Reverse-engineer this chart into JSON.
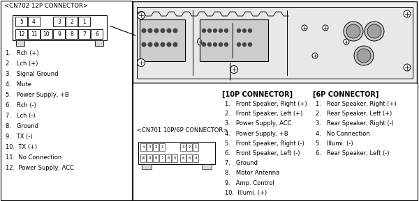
{
  "bg_color": "#ffffff",
  "border_color": "#000000",
  "text_color": "#000000",
  "gray_fill": "#d8d8d8",
  "dark_gray": "#888888",
  "cn702_title": "<CN702 12P CONNECTOR>",
  "cn702_pins_top": [
    "5",
    "4",
    "",
    "3",
    "2",
    "1"
  ],
  "cn702_pins_bot": [
    "12",
    "11",
    "10",
    "9",
    "8",
    "7",
    "6"
  ],
  "cn702_pinout": [
    "1.   Rch (+)",
    "2.   Lch (+)",
    "3.   Signal Ground",
    "4.   Mute",
    "5.   Power Supply, +B",
    "6.   Rch (-)",
    "7.   Lch (-)",
    "8.   Ground",
    "9.   TX (-)",
    "10.  TX (+)",
    "11.  No Connection",
    "12.  Power Supply, ACC"
  ],
  "cn701_title": "<CN701 10P/6P CONNECTOR>",
  "p10_title": "[10P CONNECTOR]",
  "p10_pinout": [
    "1.   Front Speaker, Right (+)",
    "2.   Front Speaker, Left (+)",
    "3.   Power Supply, ACC",
    "4.   Power Supply, +B",
    "5.   Front Speaker, Right (-)",
    "6.   Front Speaker, Left (-)",
    "7.   Ground",
    "8.   Motor Antenna",
    "9.   Amp. Control",
    "10.  Illumi. (+)"
  ],
  "p6_title": "[6P CONNECTOR]",
  "p6_pinout": [
    "1.   Rear Speaker, Right (+)",
    "2.   Rear Speaker, Left (+)",
    "3.   Rear Speaker, Right (-)",
    "4.   No Connection",
    "5.   Illumi. (-)",
    "6.   Rear Speaker, Left (-)"
  ]
}
